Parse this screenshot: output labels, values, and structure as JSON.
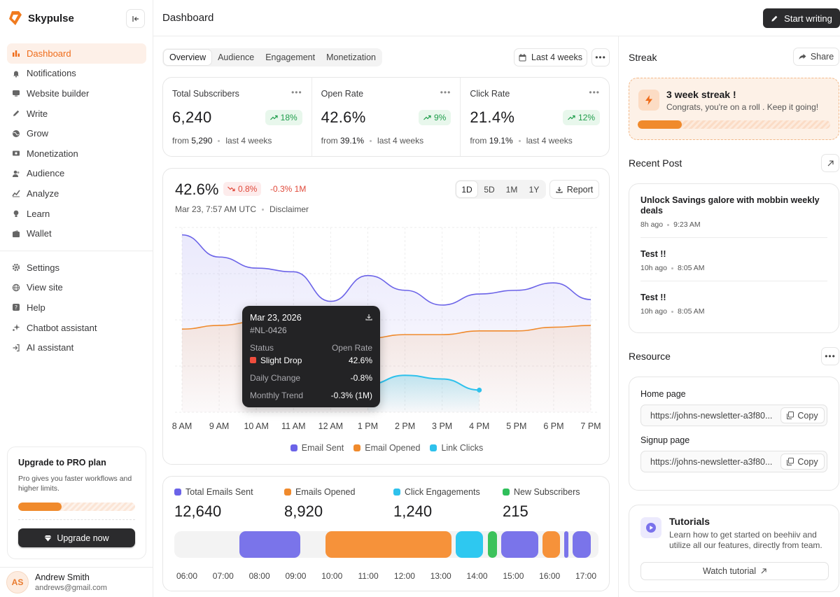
{
  "app": {
    "name": "Skypulse"
  },
  "header": {
    "title": "Dashboard",
    "start_writing": "Start writing"
  },
  "sidebar": {
    "items": [
      {
        "label": "Dashboard",
        "icon": "bar-chart-icon",
        "active": true
      },
      {
        "label": "Notifications",
        "icon": "bell-icon"
      },
      {
        "label": "Website builder",
        "icon": "monitor-icon"
      },
      {
        "label": "Write",
        "icon": "pencil-icon"
      },
      {
        "label": "Grow",
        "icon": "globe-icon"
      },
      {
        "label": "Monetization",
        "icon": "money-icon"
      },
      {
        "label": "Audience",
        "icon": "users-icon"
      },
      {
        "label": "Analyze",
        "icon": "analytics-icon"
      },
      {
        "label": "Learn",
        "icon": "bulb-icon"
      },
      {
        "label": "Wallet",
        "icon": "wallet-icon"
      }
    ],
    "items2": [
      {
        "label": "Settings",
        "icon": "gear-icon"
      },
      {
        "label": "View site",
        "icon": "globe-icon"
      },
      {
        "label": "Help",
        "icon": "help-icon"
      },
      {
        "label": "Chatbot assistant",
        "icon": "sparkle-icon"
      },
      {
        "label": "AI assistant",
        "icon": "login-icon"
      }
    ],
    "upgrade": {
      "title": "Upgrade to PRO plan",
      "desc": "Pro gives you faster workflows and higher limits.",
      "progress": 0.37,
      "button": "Upgrade now"
    },
    "user": {
      "initials": "AS",
      "name": "Andrew Smith",
      "email": "andrews@gmail.com"
    }
  },
  "tabs": [
    "Overview",
    "Audience",
    "Engagement",
    "Monetization"
  ],
  "range": "Last 4 weeks",
  "kpis": [
    {
      "label": "Total Subscribers",
      "value": "6,240",
      "change": "18%",
      "from_label": "from",
      "from": "5,290",
      "period": "last 4 weeks"
    },
    {
      "label": "Open Rate",
      "value": "42.6%",
      "change": "9%",
      "from_label": "from",
      "from": "39.1%",
      "period": "last 4 weeks"
    },
    {
      "label": "Click Rate",
      "value": "21.4%",
      "change": "12%",
      "from_label": "from",
      "from": "19.1%",
      "period": "last 4 weeks"
    }
  ],
  "chart_panel": {
    "value": "42.6%",
    "change": "0.8%",
    "change_1m": "-0.3% 1M",
    "date": "Mar 23, 7:57 AM UTC",
    "disclaimer": "Disclaimer",
    "periods": [
      "1D",
      "5D",
      "1M",
      "1Y"
    ],
    "active_period": "1D",
    "report": "Report",
    "tooltip": {
      "date": "Mar 23, 2026",
      "id": "#NL-0426",
      "status_label": "Status",
      "metric_label": "Open Rate",
      "status": "Slight Drop",
      "metric_value": "42.6%",
      "daily_label": "Daily Change",
      "daily_value": "-0.8%",
      "monthly_label": "Monthly Trend",
      "monthly_value": "-0.3% (1M)"
    }
  },
  "chart_data": {
    "type": "line",
    "x": [
      "8 AM",
      "9 AM",
      "10 AM",
      "11 AM",
      "12 AM",
      "1 PM",
      "2 PM",
      "3 PM",
      "4 PM",
      "5 PM",
      "6 PM",
      "7 PM"
    ],
    "series": [
      {
        "name": "Email Sent",
        "color": "#6b63e8",
        "values": [
          96,
          84,
          78,
          76,
          60,
          74,
          66,
          58,
          64,
          66,
          70,
          61
        ]
      },
      {
        "name": "Email Opened",
        "color": "#f08a2c",
        "values": [
          45,
          47,
          49,
          50,
          42,
          40,
          42,
          42,
          44,
          44,
          46,
          47
        ]
      },
      {
        "name": "Link Clicks",
        "color": "#2ec1ec",
        "values": [
          null,
          null,
          null,
          null,
          null,
          15,
          20,
          18,
          12,
          null,
          null,
          null
        ]
      }
    ],
    "grid": true,
    "legend": "bottom-center"
  },
  "summary": {
    "stats": [
      {
        "label": "Total Emails Sent",
        "value": "12,640",
        "color": "#6b63e8"
      },
      {
        "label": "Emails Opened",
        "value": "8,920",
        "color": "#f08a2c"
      },
      {
        "label": "Click Engagements",
        "value": "1,240",
        "color": "#2ec1ec"
      },
      {
        "label": "New Subscribers",
        "value": "215",
        "color": "#2fbf5a"
      }
    ],
    "ticks": [
      "06:00",
      "07:00",
      "08:00",
      "09:00",
      "10:00",
      "11:00",
      "12:00",
      "13:00",
      "14:00",
      "15:00",
      "16:00",
      "17:00"
    ],
    "segments": [
      {
        "start": 7.45,
        "end": 9.13,
        "color": "#7a74ea"
      },
      {
        "start": 9.83,
        "end": 13.3,
        "color": "#f6923a"
      },
      {
        "start": 13.42,
        "end": 14.17,
        "color": "#2ec8f0"
      },
      {
        "start": 14.3,
        "end": 14.55,
        "color": "#3cc25b"
      },
      {
        "start": 14.67,
        "end": 15.68,
        "color": "#7a74ea"
      },
      {
        "start": 15.8,
        "end": 16.28,
        "color": "#f6923a"
      },
      {
        "start": 16.41,
        "end": 16.51,
        "color": "#7a74ea"
      },
      {
        "start": 16.64,
        "end": 17.13,
        "color": "#7a74ea"
      }
    ]
  },
  "right": {
    "streak": {
      "title": "Streak",
      "share": "Share",
      "heading": "3 week streak !",
      "desc": "Congrats, you're on a roll . Keep it going!",
      "progress": 0.23
    },
    "recent": {
      "title": "Recent Post",
      "posts": [
        {
          "title": "Unlock Savings galore with mobbin weekly deals",
          "ago": "8h ago",
          "time": "9:23 AM"
        },
        {
          "title": "Test !!",
          "ago": "10h ago",
          "time": "8:05 AM"
        },
        {
          "title": "Test !!",
          "ago": "10h ago",
          "time": "8:05 AM"
        }
      ]
    },
    "resource": {
      "title": "Resource",
      "home_label": "Home page",
      "home_url": "https://johns-newsletter-a3f80...",
      "signup_label": "Signup page",
      "signup_url": "https://johns-newsletter-a3f80...",
      "copy": "Copy"
    },
    "tutorials": {
      "title": "Tutorials",
      "desc": "Learn how to get started on beehiiv and utilize all our features, directly from team.",
      "button": "Watch tutorial"
    }
  }
}
